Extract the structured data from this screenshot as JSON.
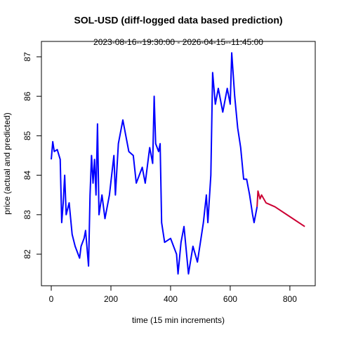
{
  "chart_data": {
    "type": "line",
    "title": "SOL-USD (diff-logged data based prediction)",
    "subtitle": "2023-08-16--19:30:00  -  2026-04-15--11:45:00",
    "x_label": "time (15 min increments)",
    "y_label": "price (actual and predicted)",
    "x": [
      0,
      5,
      10,
      20,
      30,
      35,
      40,
      45,
      50,
      60,
      70,
      80,
      90,
      95,
      100,
      110,
      115,
      125,
      130,
      135,
      140,
      145,
      150,
      155,
      160,
      170,
      180,
      195,
      210,
      215,
      225,
      240,
      260,
      275,
      285,
      305,
      315,
      330,
      340,
      345,
      350,
      360,
      365,
      370,
      380,
      400,
      420,
      425,
      435,
      445,
      460,
      475,
      490,
      510,
      520,
      525,
      535,
      541,
      550,
      560,
      575,
      590,
      600,
      605,
      615,
      625,
      635,
      645,
      655,
      665,
      675,
      680,
      690,
      693,
      700,
      705,
      720,
      750,
      800,
      850
    ],
    "series": [
      {
        "color": "#0000ff",
        "values": [
          84.4,
          84.85,
          84.6,
          84.65,
          84.4,
          82.8,
          83.3,
          84.0,
          83.0,
          83.3,
          82.5,
          82.2,
          82.0,
          81.9,
          82.2,
          82.4,
          82.6,
          81.7,
          83.5,
          84.5,
          83.8,
          84.4,
          83.5,
          85.3,
          83.0,
          83.5,
          82.9,
          83.5,
          84.5,
          83.5,
          84.8,
          85.4,
          84.6,
          84.5,
          83.8,
          84.2,
          83.8,
          84.7,
          84.3,
          86.0,
          84.8,
          84.6,
          84.8,
          82.8,
          82.3,
          82.4,
          82.0,
          81.5,
          82.3,
          82.7,
          81.5,
          82.2,
          81.8,
          82.8,
          83.5,
          82.8,
          84.0,
          86.6,
          85.8,
          86.2,
          85.6,
          86.2,
          85.8,
          87.1,
          86.0,
          85.2,
          84.7,
          83.9,
          83.9,
          83.5,
          83.0,
          82.8,
          83.2,
          null,
          null,
          null,
          null,
          null,
          null,
          null
        ]
      },
      {
        "color": "#cc0033",
        "values": [
          null,
          null,
          null,
          null,
          null,
          null,
          null,
          null,
          null,
          null,
          null,
          null,
          null,
          null,
          null,
          null,
          null,
          null,
          null,
          null,
          null,
          null,
          null,
          null,
          null,
          null,
          null,
          null,
          null,
          null,
          null,
          null,
          null,
          null,
          null,
          null,
          null,
          null,
          null,
          null,
          null,
          null,
          null,
          null,
          null,
          null,
          null,
          null,
          null,
          null,
          null,
          null,
          null,
          null,
          null,
          null,
          null,
          null,
          null,
          null,
          null,
          null,
          null,
          null,
          null,
          null,
          null,
          null,
          null,
          null,
          null,
          null,
          83.2,
          83.6,
          83.4,
          83.5,
          83.3,
          83.2,
          82.95,
          82.7
        ]
      }
    ],
    "xlim": [
      -33,
      885
    ],
    "ylim": [
      81.2,
      87.39
    ],
    "xticks": [
      0,
      200,
      400,
      600,
      800
    ],
    "yticks": [
      82,
      83,
      84,
      85,
      86,
      87
    ]
  }
}
